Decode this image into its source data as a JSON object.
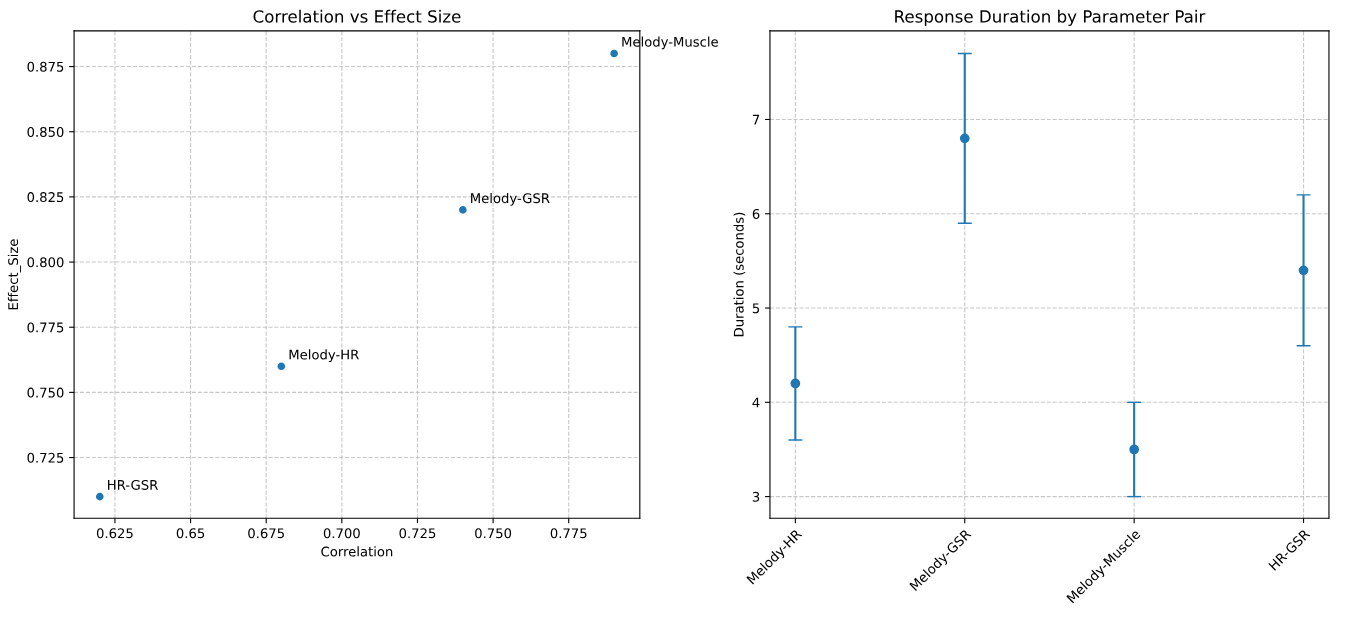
{
  "chart_data": [
    {
      "type": "scatter",
      "title": "Correlation vs Effect Size",
      "xlabel": "Correlation",
      "ylabel": "Effect_Size",
      "x": [
        0.68,
        0.74,
        0.79,
        0.62
      ],
      "series": [
        {
          "color": "#1f77b4",
          "values": [
            0.76,
            0.82,
            0.88,
            0.71
          ]
        }
      ],
      "annotations": [
        {
          "text": "Melody-HR",
          "x": 0.68,
          "y": 0.76
        },
        {
          "text": "Melody-GSR",
          "x": 0.74,
          "y": 0.82
        },
        {
          "text": "Melody-Muscle",
          "x": 0.79,
          "y": 0.88
        },
        {
          "text": "HR-GSR",
          "x": 0.62,
          "y": 0.71
        }
      ],
      "xlim": [
        0.6115,
        0.7985
      ],
      "ylim": [
        0.7017,
        0.8887
      ],
      "xticks": [
        0.625,
        0.65,
        0.675,
        {
          "value": 0.7,
          "label": "0.700"
        },
        0.725,
        {
          "value": 0.75,
          "label": "0.750"
        },
        0.775
      ],
      "yticks": [
        0.725,
        {
          "value": 0.75,
          "label": "0.750"
        },
        0.775,
        {
          "value": 0.8,
          "label": "0.800"
        },
        0.825,
        {
          "value": 0.85,
          "label": "0.850"
        },
        0.875
      ],
      "grid": true,
      "marker": "circle"
    },
    {
      "type": "scatter",
      "title": "Response Duration by Parameter Pair",
      "ylabel": "Duration (seconds)",
      "categories": [
        "Melody-HR",
        "Melody-GSR",
        "Melody-Muscle",
        "HR-GSR"
      ],
      "series": [
        {
          "color": "#1f77b4",
          "values": [
            4.2,
            6.8,
            3.5,
            5.4
          ],
          "errors": [
            0.6,
            0.9,
            0.5,
            0.8
          ]
        }
      ],
      "ylim": [
        2.77,
        7.94
      ],
      "yticks": [
        3,
        4,
        5,
        6,
        7
      ],
      "grid": true,
      "marker": "circle"
    }
  ]
}
